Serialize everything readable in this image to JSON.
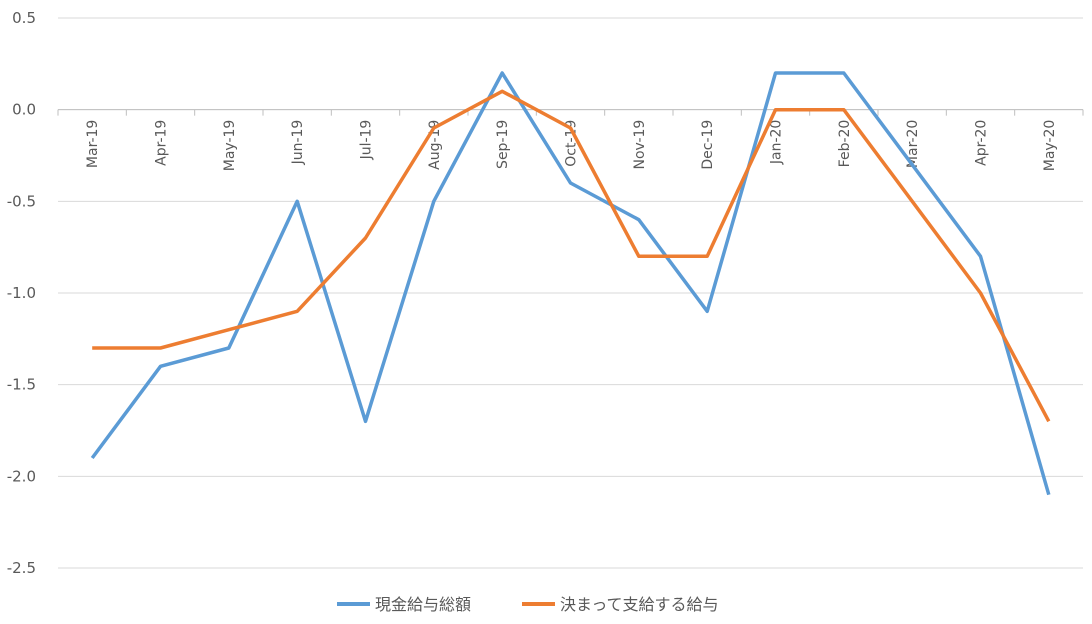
{
  "chart_data": {
    "type": "line",
    "categories": [
      "Mar-19",
      "Apr-19",
      "May-19",
      "Jun-19",
      "Jul-19",
      "Aug-19",
      "Sep-19",
      "Oct-19",
      "Nov-19",
      "Dec-19",
      "Jan-20",
      "Feb-20",
      "Mar-20",
      "Apr-20",
      "May-20"
    ],
    "series": [
      {
        "name": "現金給与総額",
        "color": "#5B9BD5",
        "values": [
          -1.9,
          -1.4,
          -1.3,
          -0.5,
          -1.7,
          -0.5,
          0.2,
          -0.4,
          -0.6,
          -1.1,
          0.2,
          0.2,
          -0.3,
          -0.8,
          -2.1
        ]
      },
      {
        "name": "決まって支給する給与",
        "color": "#ED7D31",
        "values": [
          -1.3,
          -1.3,
          -1.2,
          -1.1,
          -0.7,
          -0.1,
          0.1,
          -0.1,
          -0.8,
          -0.8,
          0.0,
          0.0,
          -0.5,
          -1.0,
          -1.7
        ]
      }
    ],
    "ylim": [
      -2.5,
      0.5
    ],
    "yticks": [
      "0.5",
      "0.0",
      "-0.5",
      "-1.0",
      "-1.5",
      "-2.0",
      "-2.5"
    ],
    "grid": true,
    "legend_position": "bottom"
  }
}
